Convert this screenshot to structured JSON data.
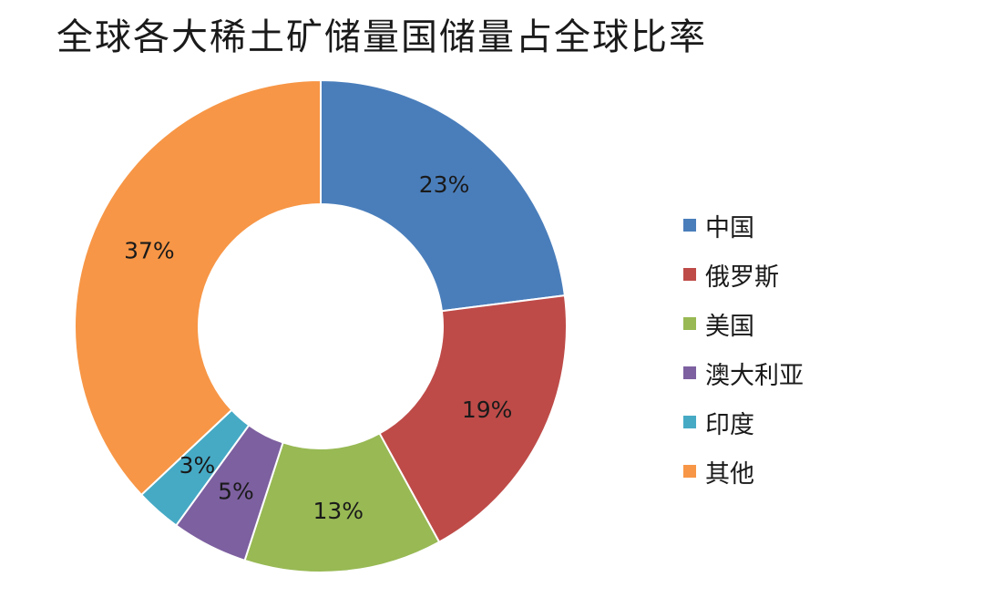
{
  "chart_data": {
    "type": "pie",
    "title": "全球各大稀土矿储量国储量占全球比率",
    "categories": [
      "中国",
      "俄罗斯",
      "美国",
      "澳大利亚",
      "印度",
      "其他"
    ],
    "values": [
      23,
      19,
      13,
      5,
      3,
      37
    ],
    "data_labels": [
      "23%",
      "19%",
      "13%",
      "5%",
      "3%",
      "37%"
    ],
    "colors": [
      "#4a7ebb",
      "#be4b48",
      "#98b954",
      "#7d60a0",
      "#46aac5",
      "#f79646"
    ],
    "donut": true,
    "legend_position": "right"
  }
}
